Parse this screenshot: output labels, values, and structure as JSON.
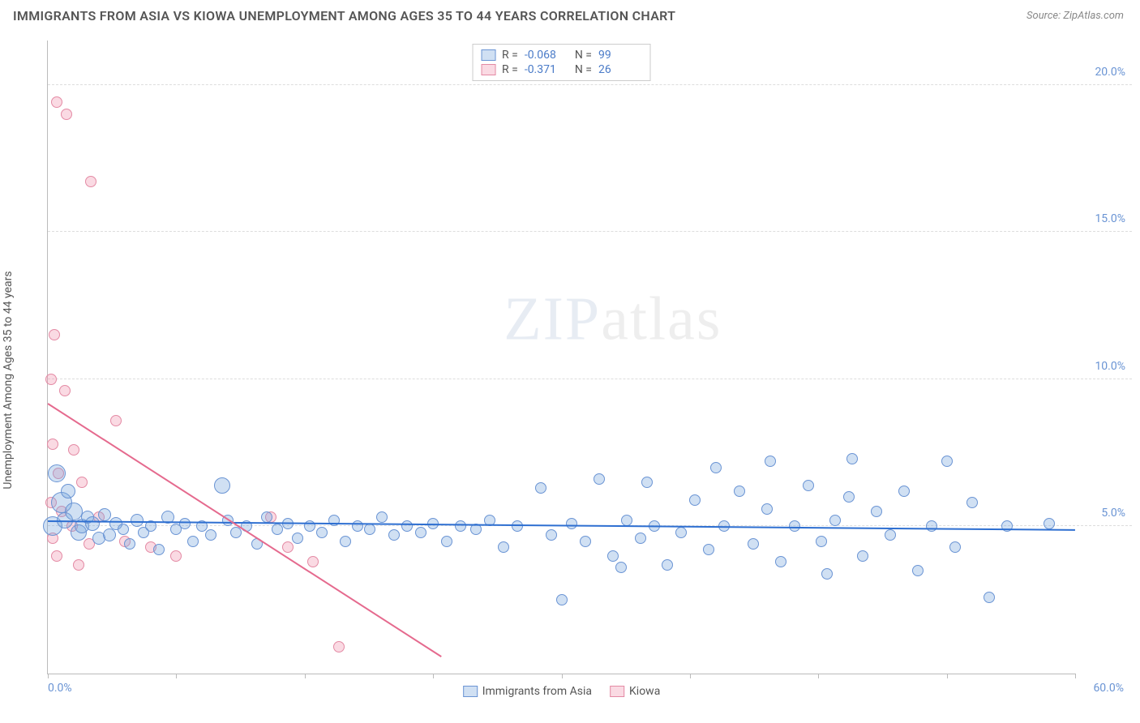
{
  "title": "IMMIGRANTS FROM ASIA VS KIOWA UNEMPLOYMENT AMONG AGES 35 TO 44 YEARS CORRELATION CHART",
  "source": "Source: ZipAtlas.com",
  "watermark_bold": "ZIP",
  "watermark_thin": "atlas",
  "y_axis_label": "Unemployment Among Ages 35 to 44 years",
  "chart": {
    "type": "scatter",
    "xlim": [
      0,
      60
    ],
    "ylim": [
      0,
      21.5
    ],
    "x_ticks": [
      0,
      7.5,
      15,
      22.5,
      30,
      37.5,
      45,
      52.5,
      60
    ],
    "y_ticks": [
      5,
      10,
      15,
      20
    ],
    "y_tick_labels": [
      "5.0%",
      "10.0%",
      "15.0%",
      "20.0%"
    ],
    "x_origin_label": "0.0%",
    "x_max_label": "60.0%",
    "background_color": "#ffffff",
    "grid_color": "#dddddd",
    "series": [
      {
        "name": "Immigrants from Asia",
        "fill": "rgba(120,165,220,0.35)",
        "stroke": "#6a94d4",
        "R": "-0.068",
        "N": "99",
        "trend": {
          "x1": 0,
          "y1": 5.2,
          "x2": 60,
          "y2": 4.9,
          "color": "#2e6fd1",
          "width": 2
        },
        "points": [
          {
            "x": 0.3,
            "y": 5.0,
            "r": 12
          },
          {
            "x": 0.5,
            "y": 6.8,
            "r": 11
          },
          {
            "x": 0.8,
            "y": 5.8,
            "r": 13
          },
          {
            "x": 1.0,
            "y": 5.2,
            "r": 10
          },
          {
            "x": 1.2,
            "y": 6.2,
            "r": 9
          },
          {
            "x": 1.5,
            "y": 5.5,
            "r": 11
          },
          {
            "x": 1.8,
            "y": 4.8,
            "r": 10
          },
          {
            "x": 2.0,
            "y": 5.0,
            "r": 9
          },
          {
            "x": 2.3,
            "y": 5.3,
            "r": 8
          },
          {
            "x": 2.6,
            "y": 5.1,
            "r": 9
          },
          {
            "x": 3.0,
            "y": 4.6,
            "r": 8
          },
          {
            "x": 3.3,
            "y": 5.4,
            "r": 8
          },
          {
            "x": 3.6,
            "y": 4.7,
            "r": 8
          },
          {
            "x": 4.0,
            "y": 5.1,
            "r": 8
          },
          {
            "x": 4.4,
            "y": 4.9,
            "r": 7
          },
          {
            "x": 4.8,
            "y": 4.4,
            "r": 7
          },
          {
            "x": 5.2,
            "y": 5.2,
            "r": 8
          },
          {
            "x": 5.6,
            "y": 4.8,
            "r": 7
          },
          {
            "x": 6.0,
            "y": 5.0,
            "r": 7
          },
          {
            "x": 6.5,
            "y": 4.2,
            "r": 7
          },
          {
            "x": 7.0,
            "y": 5.3,
            "r": 8
          },
          {
            "x": 7.5,
            "y": 4.9,
            "r": 7
          },
          {
            "x": 8.0,
            "y": 5.1,
            "r": 7
          },
          {
            "x": 8.5,
            "y": 4.5,
            "r": 7
          },
          {
            "x": 9.0,
            "y": 5.0,
            "r": 7
          },
          {
            "x": 9.5,
            "y": 4.7,
            "r": 7
          },
          {
            "x": 10.2,
            "y": 6.4,
            "r": 10
          },
          {
            "x": 10.5,
            "y": 5.2,
            "r": 7
          },
          {
            "x": 11.0,
            "y": 4.8,
            "r": 7
          },
          {
            "x": 11.6,
            "y": 5.0,
            "r": 7
          },
          {
            "x": 12.2,
            "y": 4.4,
            "r": 7
          },
          {
            "x": 12.8,
            "y": 5.3,
            "r": 7
          },
          {
            "x": 13.4,
            "y": 4.9,
            "r": 7
          },
          {
            "x": 14.0,
            "y": 5.1,
            "r": 7
          },
          {
            "x": 14.6,
            "y": 4.6,
            "r": 7
          },
          {
            "x": 15.3,
            "y": 5.0,
            "r": 7
          },
          {
            "x": 16.0,
            "y": 4.8,
            "r": 7
          },
          {
            "x": 16.7,
            "y": 5.2,
            "r": 7
          },
          {
            "x": 17.4,
            "y": 4.5,
            "r": 7
          },
          {
            "x": 18.1,
            "y": 5.0,
            "r": 7
          },
          {
            "x": 18.8,
            "y": 4.9,
            "r": 7
          },
          {
            "x": 19.5,
            "y": 5.3,
            "r": 7
          },
          {
            "x": 20.2,
            "y": 4.7,
            "r": 7
          },
          {
            "x": 21.0,
            "y": 5.0,
            "r": 7
          },
          {
            "x": 21.8,
            "y": 4.8,
            "r": 7
          },
          {
            "x": 22.5,
            "y": 5.1,
            "r": 7
          },
          {
            "x": 23.3,
            "y": 4.5,
            "r": 7
          },
          {
            "x": 24.1,
            "y": 5.0,
            "r": 7
          },
          {
            "x": 25.0,
            "y": 4.9,
            "r": 7
          },
          {
            "x": 25.8,
            "y": 5.2,
            "r": 7
          },
          {
            "x": 26.6,
            "y": 4.3,
            "r": 7
          },
          {
            "x": 27.4,
            "y": 5.0,
            "r": 7
          },
          {
            "x": 28.8,
            "y": 6.3,
            "r": 7
          },
          {
            "x": 29.4,
            "y": 4.7,
            "r": 7
          },
          {
            "x": 30.0,
            "y": 2.5,
            "r": 7
          },
          {
            "x": 30.6,
            "y": 5.1,
            "r": 7
          },
          {
            "x": 31.4,
            "y": 4.5,
            "r": 7
          },
          {
            "x": 32.2,
            "y": 6.6,
            "r": 7
          },
          {
            "x": 33.0,
            "y": 4.0,
            "r": 7
          },
          {
            "x": 33.5,
            "y": 3.6,
            "r": 7
          },
          {
            "x": 33.8,
            "y": 5.2,
            "r": 7
          },
          {
            "x": 34.6,
            "y": 4.6,
            "r": 7
          },
          {
            "x": 35.0,
            "y": 6.5,
            "r": 7
          },
          {
            "x": 35.4,
            "y": 5.0,
            "r": 7
          },
          {
            "x": 36.2,
            "y": 3.7,
            "r": 7
          },
          {
            "x": 37.0,
            "y": 4.8,
            "r": 7
          },
          {
            "x": 37.8,
            "y": 5.9,
            "r": 7
          },
          {
            "x": 38.6,
            "y": 4.2,
            "r": 7
          },
          {
            "x": 39.0,
            "y": 7.0,
            "r": 7
          },
          {
            "x": 39.5,
            "y": 5.0,
            "r": 7
          },
          {
            "x": 40.4,
            "y": 6.2,
            "r": 7
          },
          {
            "x": 41.2,
            "y": 4.4,
            "r": 7
          },
          {
            "x": 42.0,
            "y": 5.6,
            "r": 7
          },
          {
            "x": 42.2,
            "y": 7.2,
            "r": 7
          },
          {
            "x": 42.8,
            "y": 3.8,
            "r": 7
          },
          {
            "x": 43.6,
            "y": 5.0,
            "r": 7
          },
          {
            "x": 44.4,
            "y": 6.4,
            "r": 7
          },
          {
            "x": 45.2,
            "y": 4.5,
            "r": 7
          },
          {
            "x": 45.5,
            "y": 3.4,
            "r": 7
          },
          {
            "x": 46.0,
            "y": 5.2,
            "r": 7
          },
          {
            "x": 46.8,
            "y": 6.0,
            "r": 7
          },
          {
            "x": 47.0,
            "y": 7.3,
            "r": 7
          },
          {
            "x": 47.6,
            "y": 4.0,
            "r": 7
          },
          {
            "x": 48.4,
            "y": 5.5,
            "r": 7
          },
          {
            "x": 49.2,
            "y": 4.7,
            "r": 7
          },
          {
            "x": 50.0,
            "y": 6.2,
            "r": 7
          },
          {
            "x": 50.8,
            "y": 3.5,
            "r": 7
          },
          {
            "x": 51.6,
            "y": 5.0,
            "r": 7
          },
          {
            "x": 52.5,
            "y": 7.2,
            "r": 7
          },
          {
            "x": 53.0,
            "y": 4.3,
            "r": 7
          },
          {
            "x": 54.0,
            "y": 5.8,
            "r": 7
          },
          {
            "x": 55.0,
            "y": 2.6,
            "r": 7
          },
          {
            "x": 56.0,
            "y": 5.0,
            "r": 7
          },
          {
            "x": 58.5,
            "y": 5.1,
            "r": 7
          }
        ]
      },
      {
        "name": "Kiowa",
        "fill": "rgba(240,150,175,0.35)",
        "stroke": "#e48aa4",
        "R": "-0.371",
        "N": "26",
        "trend": {
          "x1": 0,
          "y1": 9.2,
          "x2": 23,
          "y2": 0.6,
          "color": "#e56a8e",
          "width": 2
        },
        "points": [
          {
            "x": 0.5,
            "y": 19.4,
            "r": 7
          },
          {
            "x": 1.1,
            "y": 19.0,
            "r": 7
          },
          {
            "x": 2.5,
            "y": 16.7,
            "r": 7
          },
          {
            "x": 0.4,
            "y": 11.5,
            "r": 7
          },
          {
            "x": 0.2,
            "y": 10.0,
            "r": 7
          },
          {
            "x": 1.0,
            "y": 9.6,
            "r": 7
          },
          {
            "x": 4.0,
            "y": 8.6,
            "r": 7
          },
          {
            "x": 0.3,
            "y": 7.8,
            "r": 7
          },
          {
            "x": 1.5,
            "y": 7.6,
            "r": 7
          },
          {
            "x": 0.6,
            "y": 6.8,
            "r": 7
          },
          {
            "x": 2.0,
            "y": 6.5,
            "r": 7
          },
          {
            "x": 0.2,
            "y": 5.8,
            "r": 7
          },
          {
            "x": 0.8,
            "y": 5.5,
            "r": 7
          },
          {
            "x": 3.0,
            "y": 5.3,
            "r": 7
          },
          {
            "x": 1.4,
            "y": 5.0,
            "r": 7
          },
          {
            "x": 0.3,
            "y": 4.6,
            "r": 7
          },
          {
            "x": 2.4,
            "y": 4.4,
            "r": 7
          },
          {
            "x": 4.5,
            "y": 4.5,
            "r": 7
          },
          {
            "x": 0.5,
            "y": 4.0,
            "r": 7
          },
          {
            "x": 6.0,
            "y": 4.3,
            "r": 7
          },
          {
            "x": 1.8,
            "y": 3.7,
            "r": 7
          },
          {
            "x": 7.5,
            "y": 4.0,
            "r": 7
          },
          {
            "x": 13.0,
            "y": 5.3,
            "r": 7
          },
          {
            "x": 14.0,
            "y": 4.3,
            "r": 7
          },
          {
            "x": 15.5,
            "y": 3.8,
            "r": 7
          },
          {
            "x": 17.0,
            "y": 0.9,
            "r": 7
          }
        ]
      }
    ]
  },
  "legend_bottom": {
    "series1_label": "Immigrants from Asia",
    "series2_label": "Kiowa"
  }
}
